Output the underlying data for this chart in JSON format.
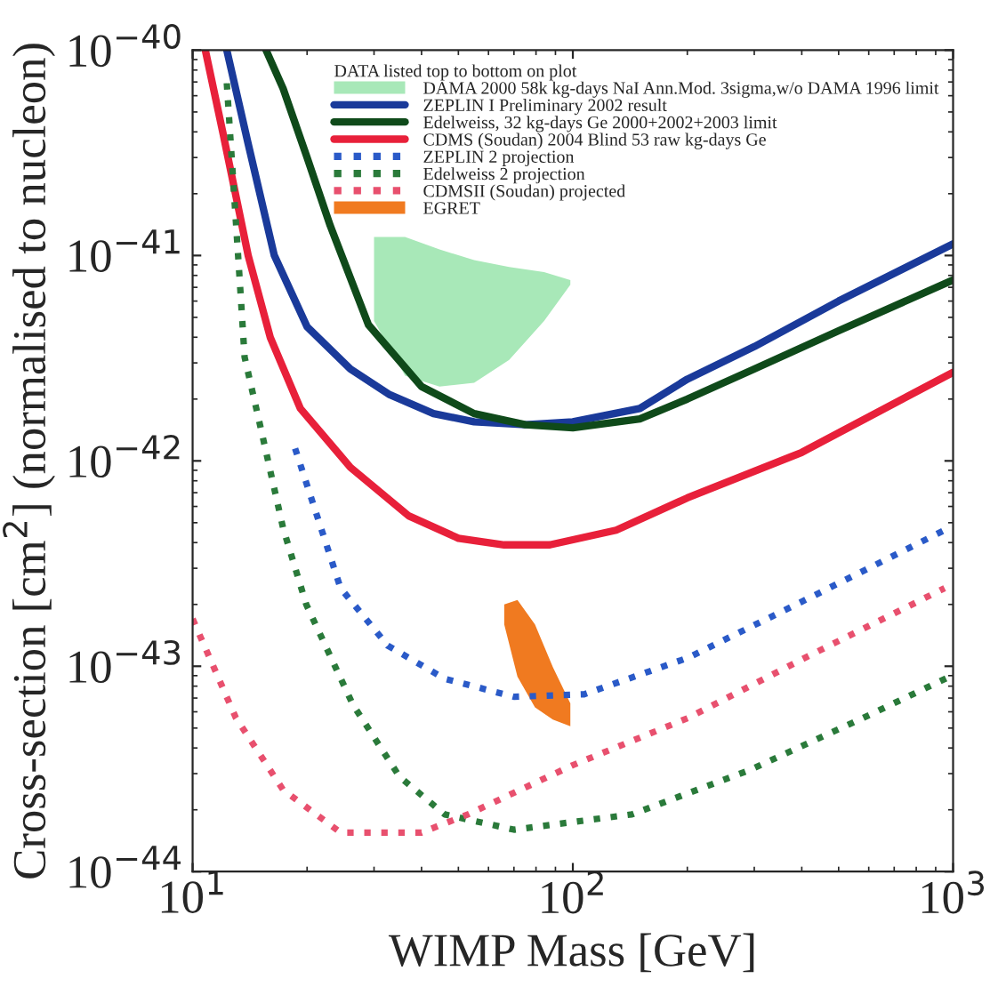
{
  "chart_data": {
    "type": "line",
    "xlabel": "WIMP Mass [GeV]",
    "ylabel": "Cross-section [cm$^{2}$] (normalised to nucleon)",
    "legend_title": "DATA listed top to bottom on plot",
    "log": "xy",
    "grid": false,
    "legend": "top right",
    "xlim": [
      10,
      1000
    ],
    "xticks": [
      {
        "value": 10,
        "label": "10$^{1}$"
      },
      {
        "value": 100,
        "label": "10$^{2}$"
      },
      {
        "value": 1000,
        "label": "10$^{3}$"
      }
    ],
    "ylim": [
      1e-44,
      1e-40
    ],
    "yticks": [
      {
        "value": 1e-44,
        "label": "10$^{−44}$"
      },
      {
        "value": 1e-43,
        "label": "10$^{−43}$"
      },
      {
        "value": 1e-42,
        "label": "10$^{−42}$"
      },
      {
        "value": 1e-41,
        "label": "10$^{−41}$"
      },
      {
        "value": 1e-40,
        "label": "10$^{−40}$"
      }
    ],
    "series": [
      {
        "name": "DAMA 2000 58k kg-days NaI Ann.Mod. 3sigma,w/o DAMA 1996 limit",
        "color": "#a8e8b8",
        "x": [
          30,
          36.2,
          44.6,
          55,
          68,
          84,
          98.5
        ],
        "values": [
          null,
          null,
          null,
          null,
          null,
          null,
          null
        ],
        "upper": [
          1.23e-41,
          1.23e-41,
          1.07e-41,
          9.5e-42,
          8.8e-42,
          8.3e-42,
          7.6e-42
        ],
        "lower": [
          4.8e-42,
          2.6e-42,
          2.3e-42,
          2.4e-42,
          3.1e-42,
          4.8e-42,
          7.2e-42
        ]
      },
      {
        "name": "ZEPLIN I Preliminary 2002 result",
        "color": "#1a3a9a",
        "line_style": "solid",
        "x": [
          12.3,
          14,
          16.4,
          20,
          26,
          33,
          43,
          55,
          75,
          100,
          150,
          200,
          300,
          500,
          1000
        ],
        "values": [
          1e-40,
          3.5e-41,
          1e-41,
          4.5e-42,
          2.8e-42,
          2.1e-42,
          1.7e-42,
          1.55e-42,
          1.5e-42,
          1.55e-42,
          1.8e-42,
          2.5e-42,
          3.6e-42,
          6e-42,
          1.14e-41
        ]
      },
      {
        "name": "Edelweiss, 32 kg-days Ge 2000+2002+2003 limit",
        "color": "#0f4a1a",
        "line_style": "solid",
        "x": [
          15.6,
          17.3,
          20,
          23,
          29,
          40,
          55,
          75,
          100,
          150,
          200,
          300,
          500,
          1000
        ],
        "values": [
          1e-40,
          6.5e-41,
          3e-41,
          1.4e-41,
          4.6e-42,
          2.3e-42,
          1.7e-42,
          1.5e-42,
          1.45e-42,
          1.6e-42,
          2e-42,
          2.8e-42,
          4.3e-42,
          7.6e-42
        ]
      },
      {
        "name": "CDMS (Soudan) 2004 Blind 53 raw kg-days Ge",
        "color": "#e8203a",
        "line_style": "solid",
        "x": [
          10.8,
          12,
          14,
          16,
          19.2,
          26,
          37,
          50,
          66,
          87,
          130,
          200,
          400,
          1000
        ],
        "values": [
          1e-40,
          4e-41,
          1e-41,
          4e-42,
          1.8e-42,
          9.3e-43,
          5.4e-43,
          4.2e-43,
          3.9e-43,
          3.9e-43,
          4.6e-43,
          6.6e-43,
          1.1e-42,
          2.7e-42
        ]
      },
      {
        "name": "ZEPLIN 2 projection",
        "color": "#2a5ac8",
        "line_style": "dotted",
        "x": [
          18.6,
          24.5,
          32.6,
          46,
          70,
          107,
          201,
          408,
          950
        ],
        "values": [
          1.15e-42,
          2.4e-43,
          1.26e-43,
          8.7e-44,
          7.1e-44,
          7.3e-44,
          1.1e-43,
          2.1e-43,
          4.6e-43
        ]
      },
      {
        "name": "Edelweiss 2 projection",
        "color": "#2a7a3a",
        "line_style": "dotted",
        "x": [
          12.3,
          13.3,
          13.7,
          15.1,
          17.3,
          19.9,
          26.4,
          35,
          46,
          70,
          143,
          289,
          580,
          980
        ],
        "values": [
          6.9e-41,
          7.6e-42,
          3.2e-42,
          1.45e-42,
          4.7e-43,
          2e-43,
          6.5e-44,
          2.9e-44,
          1.9e-44,
          1.6e-44,
          1.9e-44,
          3.1e-44,
          5.6e-44,
          8.9e-44
        ]
      },
      {
        "name": "CDMSII (Soudan) projected",
        "color": "#e8506e",
        "line_style": "dotted",
        "x": [
          10,
          13,
          17.3,
          24.5,
          40,
          53,
          100,
          201,
          408,
          950
        ],
        "values": [
          1.7e-43,
          5.6e-44,
          2.5e-44,
          1.55e-44,
          1.55e-44,
          1.9e-44,
          3.3e-44,
          5.6e-44,
          1.1e-43,
          2.4e-43
        ]
      },
      {
        "name": "EGRET",
        "color": "#f07a20",
        "x": [
          66,
          71.5,
          79.5,
          88.6,
          98.5
        ],
        "values": [
          null,
          null,
          null,
          null,
          null
        ],
        "upper": [
          2e-43,
          2.1e-43,
          1.6e-43,
          9.9e-44,
          6.6e-44
        ],
        "lower": [
          1.6e-43,
          8.9e-44,
          6.3e-44,
          5.5e-44,
          5.1e-44
        ]
      }
    ]
  }
}
